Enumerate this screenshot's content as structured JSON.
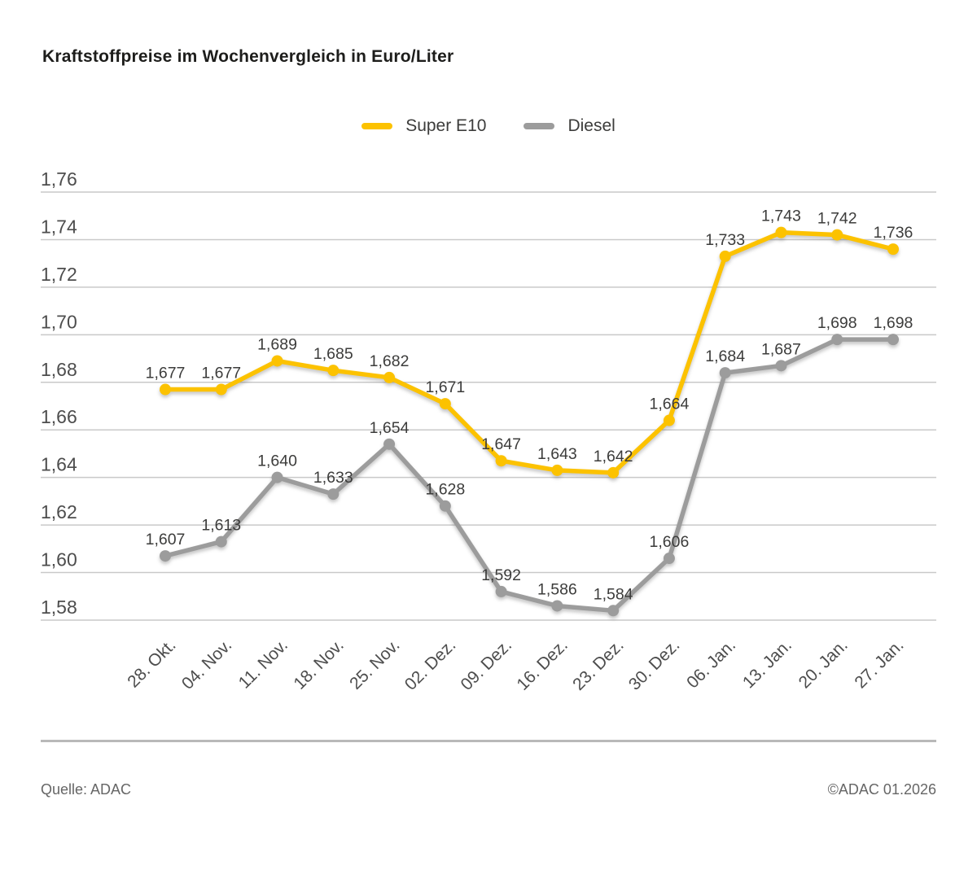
{
  "title": "Kraftstoffpreise im Wochenvergleich in Euro/Liter",
  "footer": {
    "source": "Quelle: ADAC",
    "copyright": "©ADAC 01.2026"
  },
  "colors": {
    "super_e10": "#FCC200",
    "diesel": "#9C9C9C",
    "gridline": "#c9c9c9",
    "axis_text": "#4d4d4d",
    "data_label_text": "#3c3c3b"
  },
  "chart_data": {
    "type": "line",
    "title": "Kraftstoffpreise im Wochenvergleich in Euro/Liter",
    "categories": [
      "28. Okt.",
      "04. Nov.",
      "11. Nov.",
      "18. Nov.",
      "25. Nov.",
      "02. Dez.",
      "09. Dez.",
      "16. Dez.",
      "23. Dez.",
      "30. Dez.",
      "06. Jan.",
      "13. Jan.",
      "20. Jan.",
      "27. Jan."
    ],
    "series": [
      {
        "name": "Super E10",
        "color": "#FCC200",
        "values": [
          1.677,
          1.677,
          1.689,
          1.685,
          1.682,
          1.671,
          1.647,
          1.643,
          1.642,
          1.664,
          1.733,
          1.743,
          1.742,
          1.736
        ]
      },
      {
        "name": "Diesel",
        "color": "#9C9C9C",
        "values": [
          1.607,
          1.613,
          1.64,
          1.633,
          1.654,
          1.628,
          1.592,
          1.586,
          1.584,
          1.606,
          1.684,
          1.687,
          1.698,
          1.698
        ]
      }
    ],
    "ylabel": "",
    "xlabel": "",
    "ylim": [
      1.58,
      1.76
    ],
    "y_tick_step": 0.02,
    "grid": "horizontal",
    "legend_position": "top",
    "decimal_separator": ",",
    "value_decimals": 3,
    "data_labels": true
  }
}
